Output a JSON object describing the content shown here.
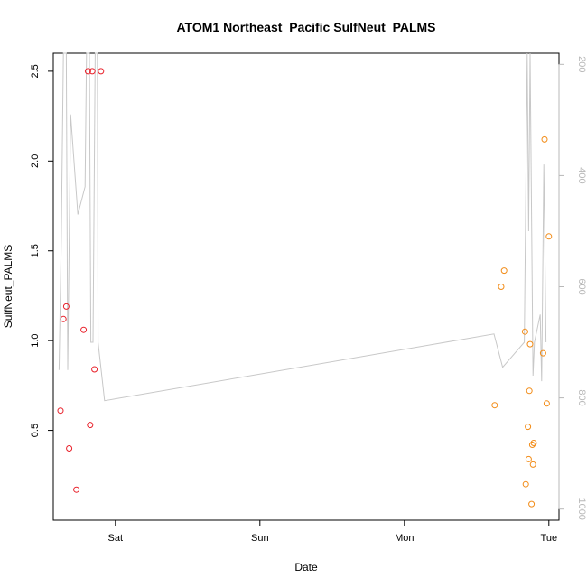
{
  "chart_data": {
    "type": "scatter",
    "title": "ATOM1 Northeast_Pacific SulfNeut_PALMS",
    "xlabel": "Date",
    "ylabel": "SulfNeut_PALMS",
    "x_ticks": [
      {
        "label": "Sat",
        "day": 1.0
      },
      {
        "label": "Sun",
        "day": 2.0
      },
      {
        "label": "Mon",
        "day": 3.0
      },
      {
        "label": "Tue",
        "day": 4.0
      }
    ],
    "xlim": [
      0.57,
      4.07
    ],
    "ylim": [
      0.0,
      2.6
    ],
    "y_ticks": [
      0.5,
      1.0,
      1.5,
      2.0,
      2.5
    ],
    "y_tick_labels": [
      "0.5",
      "1.0",
      "1.5",
      "2.0",
      "2.5"
    ],
    "y2_reversed": true,
    "y2lim": [
      1020,
      180
    ],
    "y2_ticks": [
      200,
      400,
      600,
      800,
      1000
    ],
    "y2_tick_labels": [
      "200",
      "400",
      "600",
      "800",
      "1000"
    ],
    "grid": false,
    "colors": {
      "series_red": "#e8202a",
      "series_orange": "#f28c18",
      "altitude_line": "#c8c8c8"
    },
    "series": [
      {
        "color": "red",
        "points": [
          {
            "day": 0.62,
            "value": 0.61
          },
          {
            "day": 0.64,
            "value": 1.12
          },
          {
            "day": 0.66,
            "value": 1.19
          },
          {
            "day": 0.68,
            "value": 0.4
          },
          {
            "day": 0.73,
            "value": 0.17
          },
          {
            "day": 0.78,
            "value": 1.06
          },
          {
            "day": 0.81,
            "value": 2.5
          },
          {
            "day": 0.825,
            "value": 0.53
          },
          {
            "day": 0.84,
            "value": 2.5
          },
          {
            "day": 0.855,
            "value": 0.84
          },
          {
            "day": 0.9,
            "value": 2.5
          }
        ]
      },
      {
        "color": "orange",
        "points": [
          {
            "day": 3.625,
            "value": 0.64
          },
          {
            "day": 3.67,
            "value": 1.3
          },
          {
            "day": 3.69,
            "value": 1.39
          },
          {
            "day": 3.835,
            "value": 1.05
          },
          {
            "day": 3.84,
            "value": 0.2
          },
          {
            "day": 3.855,
            "value": 0.52
          },
          {
            "day": 3.86,
            "value": 0.34
          },
          {
            "day": 3.865,
            "value": 0.72
          },
          {
            "day": 3.87,
            "value": 0.98
          },
          {
            "day": 3.88,
            "value": 0.09
          },
          {
            "day": 3.885,
            "value": 0.42
          },
          {
            "day": 3.89,
            "value": 0.31
          },
          {
            "day": 3.895,
            "value": 0.43
          },
          {
            "day": 3.96,
            "value": 0.93
          },
          {
            "day": 3.97,
            "value": 2.12
          },
          {
            "day": 3.985,
            "value": 0.65
          },
          {
            "day": 4.0,
            "value": 1.58
          }
        ]
      }
    ],
    "altitude_line": [
      {
        "day": 0.61,
        "alt": 750
      },
      {
        "day": 0.625,
        "alt": 520
      },
      {
        "day": 0.64,
        "alt": 180
      },
      {
        "day": 0.66,
        "alt": 180
      },
      {
        "day": 0.67,
        "alt": 750
      },
      {
        "day": 0.69,
        "alt": 290
      },
      {
        "day": 0.74,
        "alt": 470
      },
      {
        "day": 0.79,
        "alt": 420
      },
      {
        "day": 0.8,
        "alt": 180
      },
      {
        "day": 0.82,
        "alt": 180
      },
      {
        "day": 0.83,
        "alt": 700
      },
      {
        "day": 0.845,
        "alt": 700
      },
      {
        "day": 0.86,
        "alt": 180
      },
      {
        "day": 0.875,
        "alt": 180
      },
      {
        "day": 0.88,
        "alt": 700
      },
      {
        "day": 0.925,
        "alt": 805
      },
      {
        "day": 3.62,
        "alt": 685
      },
      {
        "day": 3.68,
        "alt": 745
      },
      {
        "day": 3.83,
        "alt": 700
      },
      {
        "day": 3.85,
        "alt": 180
      },
      {
        "day": 3.86,
        "alt": 500
      },
      {
        "day": 3.87,
        "alt": 180
      },
      {
        "day": 3.89,
        "alt": 760
      },
      {
        "day": 3.9,
        "alt": 700
      },
      {
        "day": 3.94,
        "alt": 650
      },
      {
        "day": 3.95,
        "alt": 770
      },
      {
        "day": 3.965,
        "alt": 380
      },
      {
        "day": 3.98,
        "alt": 700
      }
    ]
  }
}
